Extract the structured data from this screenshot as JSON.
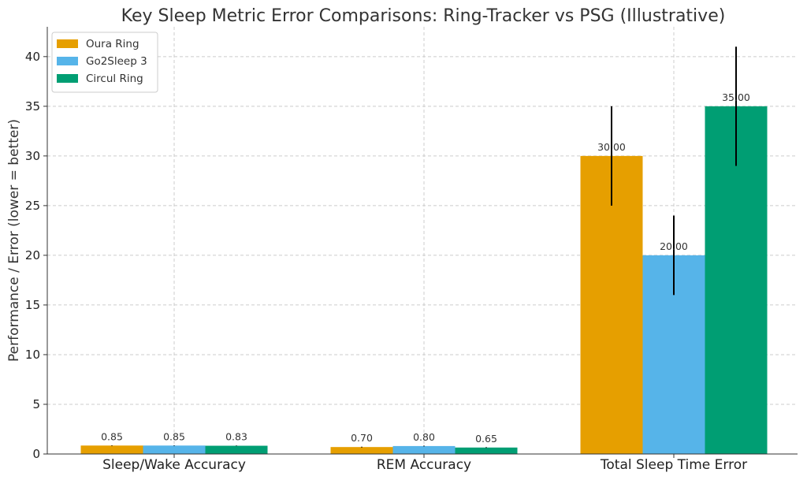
{
  "chart_data": {
    "type": "bar",
    "title": "Key Sleep Metric Error Comparisons: Ring-Tracker vs PSG (Illustrative)",
    "xlabel": "",
    "ylabel": "Performance / Error (lower = better)",
    "categories": [
      "Sleep/Wake Accuracy",
      "REM Accuracy",
      "Total Sleep Time Error"
    ],
    "series": [
      {
        "name": "Oura Ring",
        "color": "#E69F00",
        "values": [
          0.85,
          0.7,
          30.0
        ],
        "errors": [
          0.02,
          0.03,
          5.0
        ]
      },
      {
        "name": "Go2Sleep 3",
        "color": "#56B4E9",
        "values": [
          0.85,
          0.8,
          20.0
        ],
        "errors": [
          0.02,
          0.03,
          4.0
        ]
      },
      {
        "name": "Circul Ring",
        "color": "#009E73",
        "values": [
          0.83,
          0.65,
          35.0
        ],
        "errors": [
          0.02,
          0.03,
          6.0
        ]
      }
    ],
    "data_labels": [
      [
        "0.85",
        "0.70",
        "30.00"
      ],
      [
        "0.85",
        "0.80",
        "20.00"
      ],
      [
        "0.83",
        "0.65",
        "35.00"
      ]
    ],
    "ylim": [
      0,
      43
    ],
    "yticks": [
      0,
      5,
      10,
      15,
      20,
      25,
      30,
      35,
      40
    ],
    "grid": true,
    "legend_position": "top-left",
    "error_bar_color": "#000000"
  }
}
